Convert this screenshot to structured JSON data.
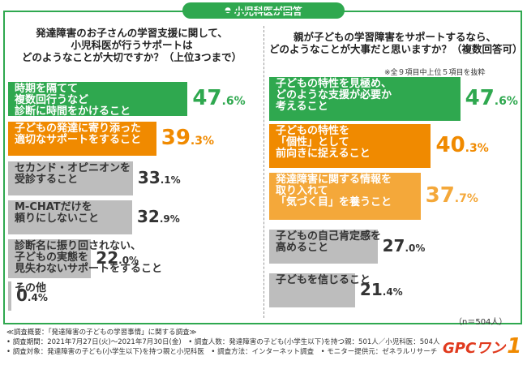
{
  "banner": "小児科医が回答",
  "footer": {
    "line1": "≪調査概要：「発達障害の子どもの学習事情」に関する調査≫",
    "line2": "• 調査期間：2021年7月27日(火)～2021年7月30日(金)　• 調査人数：発達障害の子ども(小学生以下)を持つ親：501人／小児科医：504人",
    "line3": "• 調査対象：発達障害の子ども(小学生以下)を持つ親と小児科医　• 調査方法：インターネット調査　• モニター提供元：ゼネラルリサーチ"
  },
  "logo": {
    "text": "GPCワン",
    "mark": "1"
  },
  "colors": {
    "green": "#2fa84f",
    "orange": "#f08a00",
    "light_orange": "#f4a83a",
    "gray": "#bdbdbd"
  },
  "chart_data": [
    {
      "type": "bar",
      "question": "発達障害のお子さんの学習支援に関して、小児科医が行うサポートはどのようなことが大切ですか？（上位3つまで）",
      "question_lines": [
        "発達障害のお子さんの学習支援に関して、",
        "小児科医が行うサポートは",
        "どのようなことが大切ですか？（上位3つまで）"
      ],
      "unit": "%",
      "items": [
        {
          "label_lines": [
            "時期を隔てて",
            "複数回行うなど",
            "診断に時間をかけること"
          ],
          "value": 47.6,
          "int": "47",
          "dec": ".6"
        },
        {
          "label_lines": [
            "子どもの発達に寄り添った",
            "適切なサポートをすること"
          ],
          "value": 39.3,
          "int": "39",
          "dec": ".3"
        },
        {
          "label_lines": [
            "セカンド・オピニオンを",
            "受診すること"
          ],
          "value": 33.1,
          "int": "33",
          "dec": ".1"
        },
        {
          "label_lines": [
            "M-CHATだけを",
            "頼りにしないこと"
          ],
          "value": 32.9,
          "int": "32",
          "dec": ".9"
        },
        {
          "label_lines": [
            "診断名に振り回されない、",
            "子どもの実態を",
            "見失わないサポートをすること"
          ],
          "value": 22.0,
          "int": "22",
          "dec": ".0"
        },
        {
          "label_lines": [
            "その他"
          ],
          "value": 0.4,
          "int": "0",
          "dec": ".4"
        }
      ]
    },
    {
      "type": "bar",
      "question": "親が子どもの学習障害をサポートするなら、どのようなことが大事だと思いますか？（複数回答可）",
      "question_lines": [
        "親が子どもの学習障害をサポートするなら、",
        "どのようなことが大事だと思いますか？（複数回答可）"
      ],
      "note": "※全９項目中上位５項目を抜粋",
      "sample": "（n＝504人）",
      "unit": "%",
      "items": [
        {
          "label_lines": [
            "子どもの特性を見極め、",
            "どのような支援が必要か",
            "考えること"
          ],
          "value": 47.6,
          "int": "47",
          "dec": ".6"
        },
        {
          "label_lines": [
            "子どもの特性を",
            "「個性」として",
            "前向きに捉えること"
          ],
          "value": 40.3,
          "int": "40",
          "dec": ".3"
        },
        {
          "label_lines": [
            "発達障害に関する情報を",
            "取り入れて",
            "「気づく目」を養うこと"
          ],
          "value": 37.7,
          "int": "37",
          "dec": ".7"
        },
        {
          "label_lines": [
            "子どもの自己肯定感を",
            "高めること"
          ],
          "value": 27.0,
          "int": "27",
          "dec": ".0"
        },
        {
          "label_lines": [
            "子どもを信じること"
          ],
          "value": 21.4,
          "int": "21",
          "dec": ".4"
        }
      ]
    }
  ]
}
